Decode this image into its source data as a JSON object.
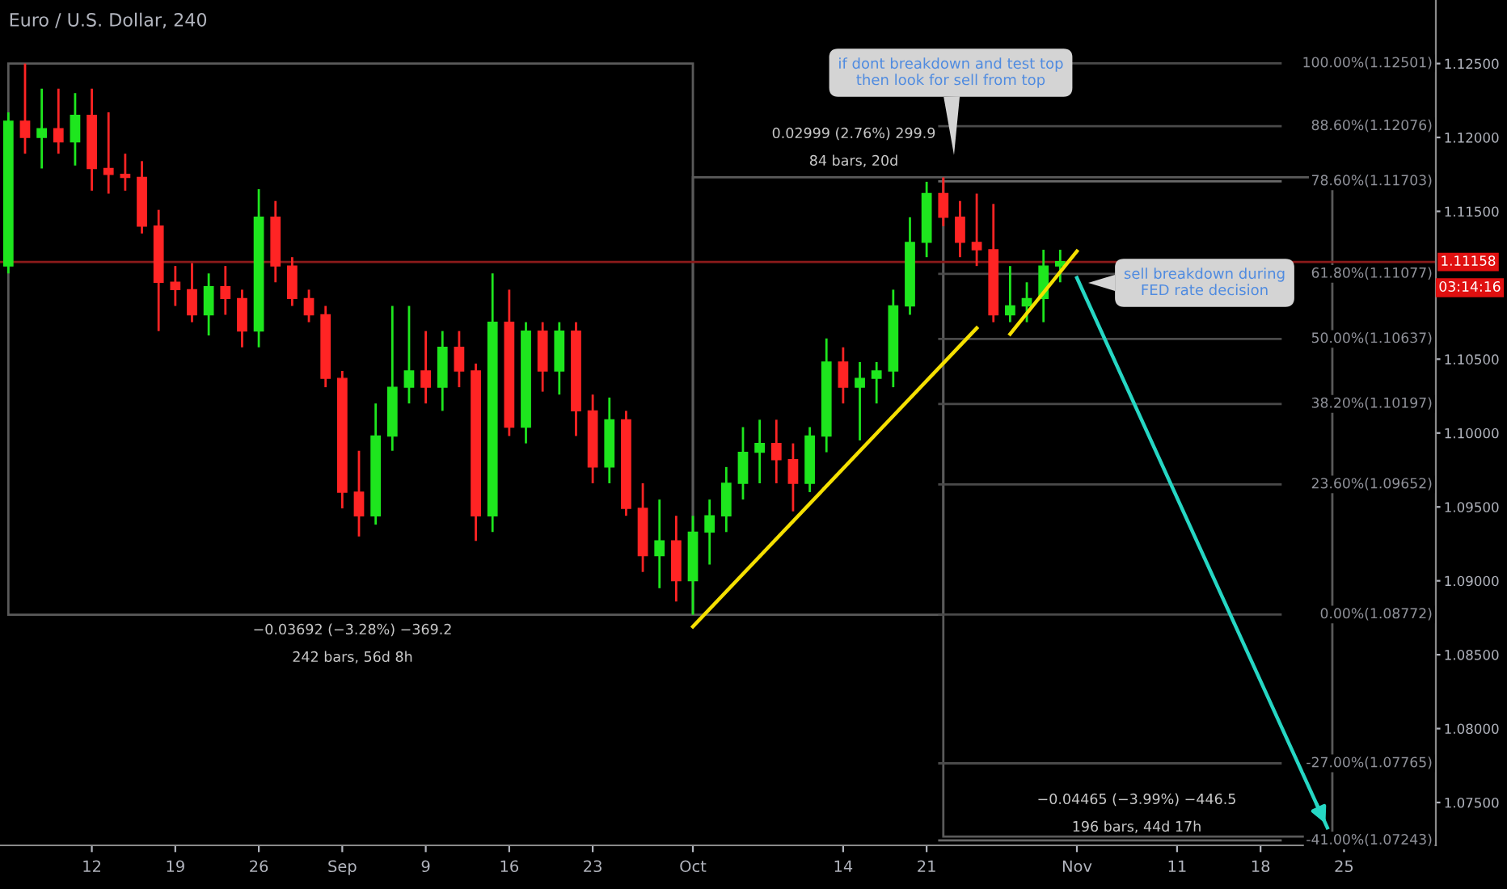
{
  "chart_data": {
    "type": "candlestick",
    "title": "Euro / U.S. Dollar, 240",
    "categories": [
      null,
      null,
      null,
      null,
      null,
      "12",
      null,
      null,
      null,
      null,
      "19",
      null,
      null,
      null,
      null,
      "26",
      null,
      null,
      null,
      null,
      "Sep",
      null,
      null,
      null,
      null,
      "9",
      null,
      null,
      null,
      null,
      "16",
      null,
      null,
      null,
      null,
      "23",
      null,
      null,
      null,
      null,
      null,
      "Oct",
      null,
      null,
      null,
      null,
      null,
      null,
      null,
      null,
      "14",
      null,
      null,
      null,
      null,
      "21",
      null,
      null,
      null,
      null,
      null,
      null,
      null,
      null,
      "Nov",
      null,
      null,
      null,
      null,
      null,
      "11",
      null,
      null,
      null,
      null,
      "18",
      null,
      null,
      null,
      null,
      "25",
      null,
      null,
      null,
      null,
      null
    ],
    "ohlc": [
      [
        1.1113,
        1.1217,
        1.1108,
        1.1211
      ],
      [
        1.1211,
        1.125,
        1.1189,
        1.12
      ],
      [
        1.12,
        1.1233,
        1.1179,
        1.1206
      ],
      [
        1.1206,
        1.1233,
        1.1189,
        1.1197
      ],
      [
        1.1197,
        1.123,
        1.1181,
        1.1215
      ],
      [
        1.1215,
        1.1233,
        1.1164,
        1.1179
      ],
      [
        1.1179,
        1.1217,
        1.1162,
        1.1175
      ],
      [
        1.1175,
        1.1189,
        1.1164,
        1.1173
      ],
      [
        1.1173,
        1.1184,
        1.1135,
        1.114
      ],
      [
        1.114,
        1.1151,
        1.1069,
        1.1102
      ],
      [
        1.1102,
        1.1113,
        1.1086,
        1.1097
      ],
      [
        1.1097,
        1.1115,
        1.1075,
        1.108
      ],
      [
        1.108,
        1.1108,
        1.1066,
        1.1099
      ],
      [
        1.1099,
        1.1113,
        1.108,
        1.1091
      ],
      [
        1.1091,
        1.1097,
        1.1058,
        1.1069
      ],
      [
        1.1069,
        1.1165,
        1.1058,
        1.1146
      ],
      [
        1.1146,
        1.1157,
        1.1102,
        1.1113
      ],
      [
        1.1113,
        1.1119,
        1.1086,
        1.1091
      ],
      [
        1.1091,
        1.1097,
        1.1075,
        1.108
      ],
      [
        1.108,
        1.1086,
        1.1031,
        1.1037
      ],
      [
        1.1037,
        1.1042,
        1.0949,
        1.096
      ],
      [
        1.096,
        1.0988,
        1.093,
        1.0944
      ],
      [
        1.0944,
        1.102,
        1.0938,
        1.0998
      ],
      [
        1.0998,
        1.1086,
        1.0988,
        1.1031
      ],
      [
        1.1031,
        1.1086,
        1.102,
        1.1042
      ],
      [
        1.1042,
        1.1069,
        1.102,
        1.1031
      ],
      [
        1.1031,
        1.1069,
        1.1015,
        1.1058
      ],
      [
        1.1058,
        1.1069,
        1.1031,
        1.1042
      ],
      [
        1.1042,
        1.1047,
        1.0927,
        1.0944
      ],
      [
        1.0944,
        1.1108,
        1.0933,
        1.1075
      ],
      [
        1.1075,
        1.1097,
        1.0998,
        1.1004
      ],
      [
        1.1004,
        1.1075,
        1.0993,
        1.1069
      ],
      [
        1.1069,
        1.1075,
        1.1028,
        1.1042
      ],
      [
        1.1042,
        1.1075,
        1.1026,
        1.1069
      ],
      [
        1.1069,
        1.1075,
        1.0998,
        1.1015
      ],
      [
        1.1015,
        1.1026,
        1.0966,
        1.0977
      ],
      [
        1.0977,
        1.1024,
        1.0966,
        1.1009
      ],
      [
        1.1009,
        1.1015,
        1.0944,
        1.0949
      ],
      [
        1.0949,
        1.0966,
        1.0906,
        1.0917
      ],
      [
        1.0917,
        1.0955,
        1.0895,
        1.0927
      ],
      [
        1.0927,
        1.0944,
        1.0886,
        1.09
      ],
      [
        1.09,
        1.0944,
        1.0877,
        1.0933
      ],
      [
        1.0933,
        1.0955,
        1.0911,
        1.0944
      ],
      [
        1.0944,
        1.0977,
        1.0933,
        1.0966
      ],
      [
        1.0966,
        1.1004,
        1.0955,
        1.0987
      ],
      [
        1.0987,
        1.1009,
        1.0966,
        1.0993
      ],
      [
        1.0993,
        1.1009,
        1.0966,
        1.0982
      ],
      [
        1.0982,
        1.0993,
        1.0947,
        1.0966
      ],
      [
        1.0966,
        1.1004,
        1.096,
        1.0998
      ],
      [
        1.0998,
        1.1064,
        1.0987,
        1.1048
      ],
      [
        1.1048,
        1.1058,
        1.102,
        1.1031
      ],
      [
        1.1031,
        1.1048,
        1.0995,
        1.1037
      ],
      [
        1.1037,
        1.1048,
        1.102,
        1.1042
      ],
      [
        1.1042,
        1.1097,
        1.1031,
        1.1086
      ],
      [
        1.1086,
        1.1146,
        1.108,
        1.1129
      ],
      [
        1.1129,
        1.117,
        1.1119,
        1.1162
      ],
      [
        1.1162,
        1.1173,
        1.114,
        1.1146
      ],
      [
        1.1146,
        1.1157,
        1.1119,
        1.1129
      ],
      [
        1.1129,
        1.1162,
        1.1113,
        1.1124
      ],
      [
        1.1124,
        1.1155,
        1.1075,
        1.108
      ],
      [
        1.108,
        1.1113,
        1.1075,
        1.1086
      ],
      [
        1.1086,
        1.1102,
        1.1075,
        1.1091
      ],
      [
        1.1091,
        1.1124,
        1.1075,
        1.1113
      ],
      [
        1.1113,
        1.1124,
        1.1102,
        1.1116
      ],
      null,
      null,
      null,
      null,
      null,
      null,
      null,
      null,
      null,
      null,
      null,
      null,
      null,
      null,
      null,
      null,
      null,
      null,
      null,
      null,
      null,
      null
    ],
    "series": [
      {
        "type": "line",
        "color": "#f5e000",
        "values": [
          null,
          null,
          null,
          null,
          null,
          null,
          null,
          null,
          null,
          null,
          null,
          null,
          null,
          null,
          null,
          null,
          null,
          null,
          null,
          null,
          null,
          null,
          null,
          null,
          null,
          null,
          null,
          null,
          null,
          null,
          null,
          null,
          null,
          null,
          null,
          null,
          null,
          null,
          null,
          null,
          null,
          1.0869,
          null,
          null,
          null,
          null,
          null,
          null,
          null,
          null,
          null,
          null,
          null,
          null,
          null,
          null,
          null,
          null,
          1.1071,
          null,
          null,
          null,
          null,
          null,
          null,
          null,
          null,
          null,
          null,
          null,
          null,
          null,
          null,
          null,
          null,
          null,
          null,
          null,
          null,
          null,
          null,
          null,
          null,
          null,
          null,
          null
        ]
      },
      {
        "type": "line",
        "color": "#f5e000",
        "values": [
          null,
          null,
          null,
          null,
          null,
          null,
          null,
          null,
          null,
          null,
          null,
          null,
          null,
          null,
          null,
          null,
          null,
          null,
          null,
          null,
          null,
          null,
          null,
          null,
          null,
          null,
          null,
          null,
          null,
          null,
          null,
          null,
          null,
          null,
          null,
          null,
          null,
          null,
          null,
          null,
          null,
          null,
          null,
          null,
          null,
          null,
          null,
          null,
          null,
          null,
          null,
          null,
          null,
          null,
          null,
          null,
          null,
          null,
          null,
          null,
          1.1067,
          null,
          null,
          null,
          1.1123,
          null,
          null,
          null,
          null,
          null,
          null,
          null,
          null,
          null,
          null,
          null,
          null,
          null,
          null,
          null,
          null,
          null,
          null,
          null,
          null,
          null
        ]
      },
      {
        "type": "line",
        "color": "#26d7c4",
        "values": [
          null,
          null,
          null,
          null,
          null,
          null,
          null,
          null,
          null,
          null,
          null,
          null,
          null,
          null,
          null,
          null,
          null,
          null,
          null,
          null,
          null,
          null,
          null,
          null,
          null,
          null,
          null,
          null,
          null,
          null,
          null,
          null,
          null,
          null,
          null,
          null,
          null,
          null,
          null,
          null,
          null,
          null,
          null,
          null,
          null,
          null,
          null,
          null,
          null,
          null,
          null,
          null,
          null,
          null,
          null,
          null,
          null,
          null,
          null,
          null,
          null,
          null,
          null,
          null,
          1.1105,
          null,
          null,
          null,
          null,
          null,
          null,
          null,
          null,
          null,
          null,
          null,
          null,
          null,
          null,
          1.0733,
          null,
          null,
          null,
          null,
          null,
          null
        ]
      }
    ],
    "ylim": [
      1.0721,
      1.1293
    ],
    "yticks": [
      {
        "value": 1.075,
        "label": "1.07500"
      },
      {
        "value": 1.08,
        "label": "1.08000"
      },
      {
        "value": 1.085,
        "label": "1.08500"
      },
      {
        "value": 1.09,
        "label": "1.09000"
      },
      {
        "value": 1.095,
        "label": "1.09500"
      },
      {
        "value": 1.1,
        "label": "1.10000"
      },
      {
        "value": 1.105,
        "label": "1.10500"
      },
      {
        "value": 1.115,
        "label": "1.11500"
      },
      {
        "value": 1.12,
        "label": "1.12000"
      },
      {
        "value": 1.125,
        "label": "1.12500"
      }
    ],
    "ref_lines": [
      {
        "axis": "y",
        "value": 1.12501,
        "label": "100.00%(1.12501)",
        "color": "#4a4a4a"
      },
      {
        "axis": "y",
        "value": 1.12076,
        "label": "88.60%(1.12076)",
        "color": "#4a4a4a"
      },
      {
        "axis": "y",
        "value": 1.11703,
        "label": "78.60%(1.11703)",
        "color": "#6a6a6a"
      },
      {
        "axis": "y",
        "value": 1.11077,
        "label": "61.80%(1.11077)",
        "color": "#4a4a4a"
      },
      {
        "axis": "y",
        "value": 1.10637,
        "label": "50.00%(1.10637)",
        "color": "#4a4a4a"
      },
      {
        "axis": "y",
        "value": 1.10197,
        "label": "38.20%(1.10197)",
        "color": "#4a4a4a"
      },
      {
        "axis": "y",
        "value": 1.09652,
        "label": "23.60%(1.09652)",
        "color": "#4a4a4a"
      },
      {
        "axis": "y",
        "value": 1.08772,
        "label": "0.00%(1.08772)",
        "color": "#4a4a4a"
      },
      {
        "axis": "y",
        "value": 1.07765,
        "label": "-27.00%(1.07765)",
        "color": "#4a4a4a"
      },
      {
        "axis": "y",
        "value": 1.07243,
        "label": "-41.00%(1.07243)",
        "color": "#6a6a6a"
      },
      {
        "axis": "y",
        "value": 1.11158,
        "label": "1.11158",
        "color": "#8b1a1a"
      }
    ],
    "annotations": [
      "0.02999 (2.76%) 299.9",
      "84 bars, 20d",
      "−0.03692 (−3.28%) −369.2",
      "242 bars, 56d 8h",
      "−0.04465 (−3.99%) −446.5",
      "196 bars, 44d 17h",
      "if dont breakdown and test top\nthen look for sell from top",
      "sell breakdown during\nFED rate decision",
      "03:14:16"
    ]
  }
}
